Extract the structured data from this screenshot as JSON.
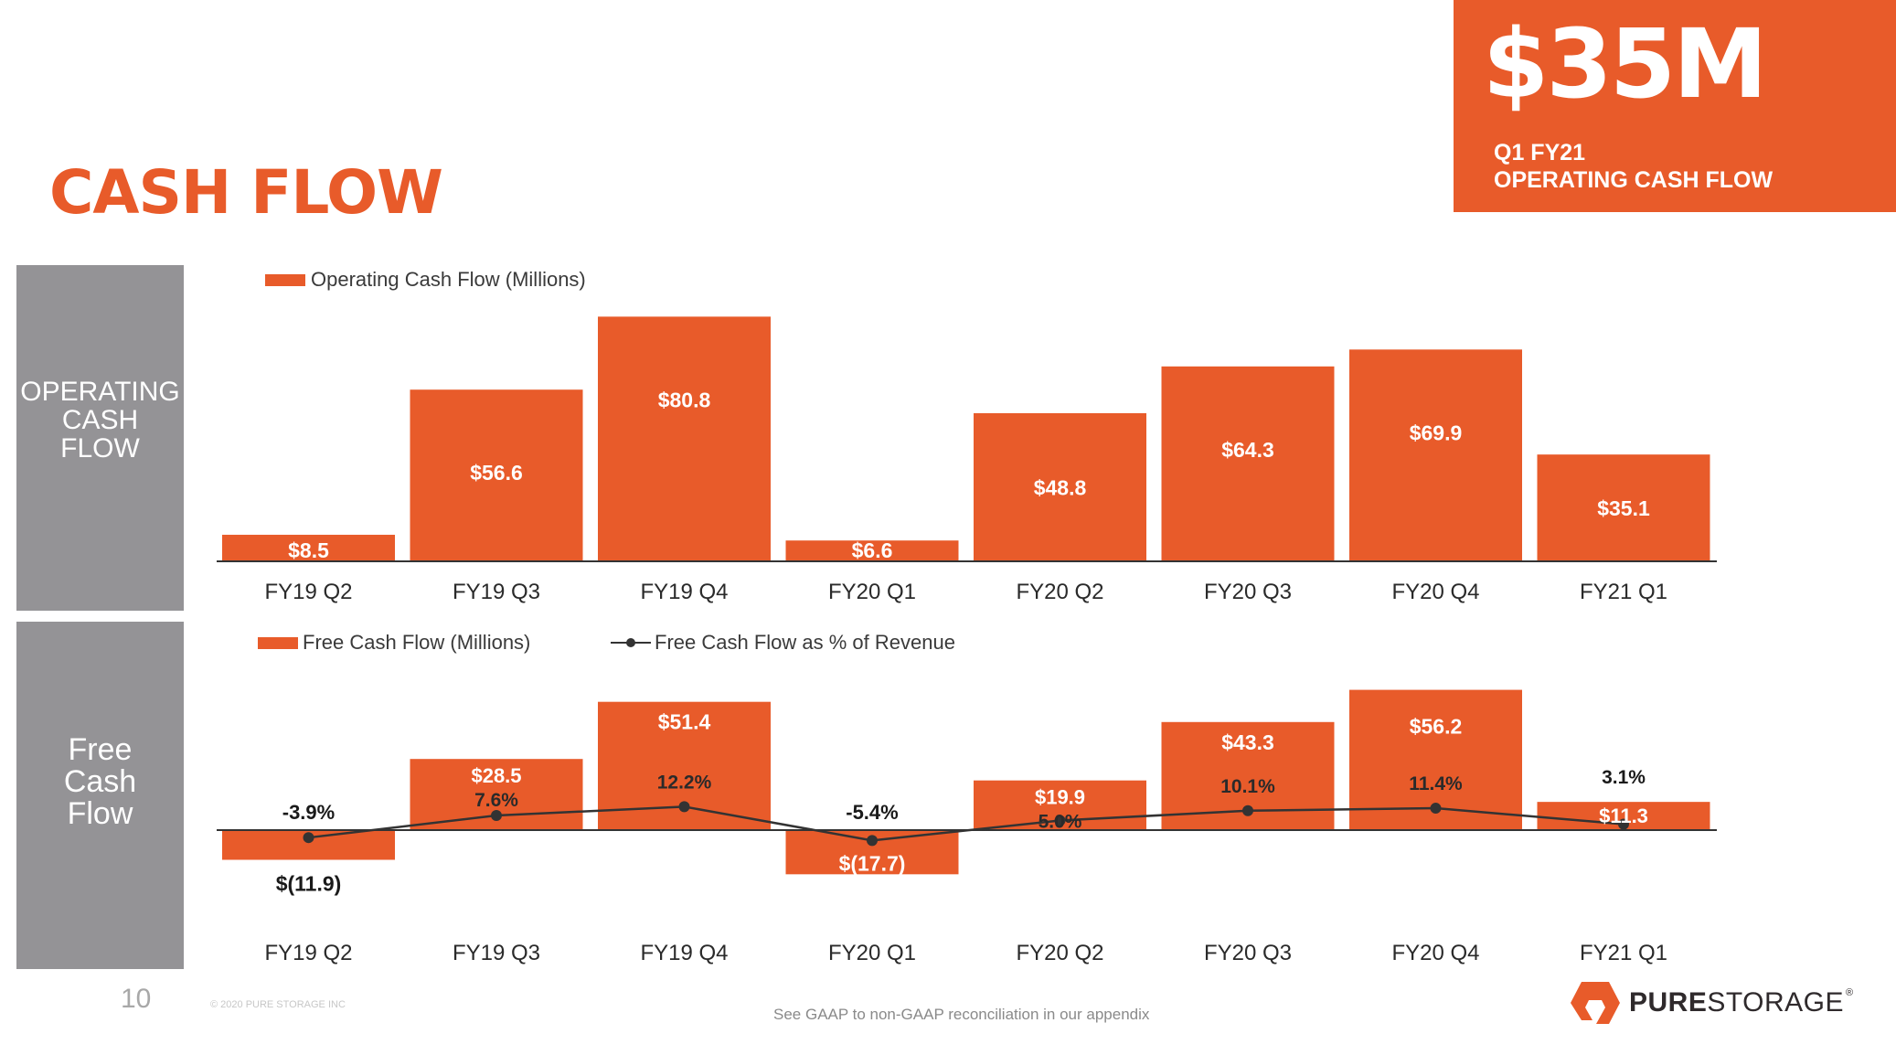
{
  "title": "CASH FLOW",
  "callout": {
    "value": "$35M",
    "line1": "Q1 FY21",
    "line2": "OPERATING CASH FLOW"
  },
  "side_panels": {
    "top": [
      "OPERATING",
      "CASH",
      "FLOW"
    ],
    "bottom": [
      "Free",
      "Cash",
      "Flow"
    ]
  },
  "colors": {
    "accent": "#E85B2A",
    "panel_gray": "#949396",
    "line": "#333333"
  },
  "chart_data": [
    {
      "type": "bar",
      "categories": [
        "FY19 Q2",
        "FY19 Q3",
        "FY19 Q4",
        "FY20 Q1",
        "FY20 Q2",
        "FY20 Q3",
        "FY20 Q4",
        "FY21 Q1"
      ],
      "series": [
        {
          "name": "Operating Cash Flow (Millions)",
          "values": [
            8.5,
            56.6,
            80.8,
            6.6,
            48.8,
            64.3,
            69.9,
            35.1
          ],
          "labels": [
            "$8.5",
            "$56.6",
            "$80.8",
            "$6.6",
            "$48.8",
            "$64.3",
            "$69.9",
            "$35.1"
          ]
        }
      ],
      "legend": "top-left"
    },
    {
      "type": "bar",
      "categories": [
        "FY19 Q2",
        "FY19 Q3",
        "FY19 Q4",
        "FY20 Q1",
        "FY20 Q2",
        "FY20 Q3",
        "FY20 Q4",
        "FY21 Q1"
      ],
      "series": [
        {
          "name": "Free Cash Flow (Millions)",
          "values": [
            -11.9,
            28.5,
            51.4,
            -17.7,
            19.9,
            43.3,
            56.2,
            11.3
          ],
          "labels": [
            "$(11.9)",
            "$28.5",
            "$51.4",
            "$(17.7)",
            "$19.9",
            "$43.3",
            "$56.2",
            "$11.3"
          ]
        },
        {
          "name": "Free Cash Flow as % of Revenue",
          "type": "line",
          "values": [
            -3.9,
            7.6,
            12.2,
            -5.4,
            5.0,
            10.1,
            11.4,
            3.1
          ],
          "labels": [
            "-3.9%",
            "7.6%",
            "12.2%",
            "-5.4%",
            "5.0%",
            "10.1%",
            "11.4%",
            "3.1%"
          ]
        }
      ],
      "legend": "top-left"
    }
  ],
  "footer": {
    "page_number": "10",
    "copyright": "© 2020 PURE STORAGE INC",
    "note": "See GAAP to non-GAAP reconciliation in our appendix",
    "logo_bold": "PURE",
    "logo_regular": "STORAGE",
    "logo_mark": "®"
  }
}
